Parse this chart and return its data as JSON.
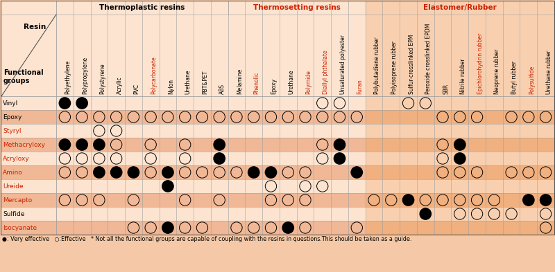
{
  "bg_color": "#f5c9a7",
  "light_row": "#fde8d8",
  "dark_row": "#f5c5a0",
  "elasto_light": "#f8d0b0",
  "elasto_dark": "#f0b890",
  "thermoplastic_resins": [
    "Polyethylene",
    "Polypropylene",
    "Polystyrene",
    "Acrylic",
    "PVC",
    "Polycarbonate",
    "Nylon",
    "Urethane",
    "PBT&PET",
    "ABS"
  ],
  "thermosetting_resins": [
    "Melamine",
    "Phenolic",
    "Epoxy",
    "Urethane",
    "Polymide",
    "Diallyl phthalate",
    "Unsaturated polyester",
    "Furan"
  ],
  "elastomer_resins": [
    "Polybutadiene rubber",
    "Polyisoprene rubber",
    "Sulfur-crosslinked EPM",
    "Peroxide crosslinked EPDM",
    "SBR",
    "Nitrile rubber",
    "Epichlorohydrin rubber",
    "Neoprene rubber",
    "Butyl rubber",
    "Polysulfide",
    "Urethane rubber"
  ],
  "functional_groups": [
    "Vinyl",
    "Epoxy",
    "Styryl",
    "Methacryloxy",
    "Acryloxy",
    "Amino",
    "Ureide",
    "Mercapto",
    "Sulfide",
    "Isocyanate"
  ],
  "red_col_names": [
    "Polycarbonate",
    "Phenolic",
    "Polymide",
    "Furan",
    "Epichlorohydrin rubber",
    "Polysulfide",
    "Diallyl phthalate"
  ],
  "red_row_names": [
    "Styryl",
    "Methacryloxy",
    "Acryloxy",
    "Amino",
    "Ureide",
    "Mercapto",
    "Isocyanate"
  ],
  "data": {
    "Vinyl": [
      "F",
      "F",
      "",
      "",
      "",
      "",
      "",
      "",
      "",
      "",
      "",
      "",
      "",
      "",
      "",
      "O",
      "O",
      "",
      "",
      "",
      "O",
      "O",
      "",
      "",
      "",
      "",
      "",
      "",
      ""
    ],
    "Epoxy": [
      "O",
      "O",
      "O",
      "O",
      "O",
      "O",
      "O",
      "O",
      "O",
      "O",
      "O",
      "O",
      "O",
      "O",
      "O",
      "O",
      "O",
      "O",
      "",
      "",
      "",
      "",
      "O",
      "O",
      "O",
      "",
      "O",
      "O",
      "O"
    ],
    "Styryl": [
      "",
      "",
      "O",
      "O",
      "",
      "",
      "",
      "",
      "",
      "",
      "",
      "",
      "",
      "",
      "",
      "",
      "",
      "",
      "",
      "",
      "",
      "",
      "",
      "",
      "",
      "",
      "",
      "",
      ""
    ],
    "Methacryloxy": [
      "F",
      "F",
      "F",
      "O",
      "",
      "O",
      "",
      "O",
      "",
      "F",
      "",
      "",
      "",
      "",
      "",
      "O",
      "F",
      "",
      "",
      "",
      "",
      "",
      "O",
      "F",
      "",
      "",
      "",
      "",
      ""
    ],
    "Acryloxy": [
      "O",
      "O",
      "O",
      "O",
      "",
      "O",
      "",
      "O",
      "",
      "F",
      "",
      "",
      "",
      "",
      "",
      "O",
      "F",
      "",
      "",
      "",
      "",
      "",
      "O",
      "F",
      "",
      "",
      "",
      "",
      ""
    ],
    "Amino": [
      "O",
      "O",
      "F",
      "F",
      "F",
      "O",
      "F",
      "O",
      "O",
      "O",
      "O",
      "F",
      "F",
      "O",
      "O",
      "",
      "",
      "F",
      "",
      "",
      "",
      "",
      "O",
      "O",
      "O",
      "",
      "O",
      "O",
      "O"
    ],
    "Ureide": [
      "",
      "",
      "",
      "",
      "",
      "",
      "F",
      "",
      "",
      "",
      "",
      "",
      "O",
      "",
      "O",
      "O",
      "",
      "",
      "",
      "",
      "",
      "",
      "",
      "",
      "",
      "",
      "",
      "",
      ""
    ],
    "Mercapto": [
      "O",
      "O",
      "O",
      "",
      "O",
      "",
      "",
      "O",
      "",
      "O",
      "",
      "",
      "O",
      "O",
      "O",
      "",
      "",
      "",
      "O",
      "O",
      "F",
      "O",
      "O",
      "O",
      "O",
      "O",
      "",
      "F",
      "F"
    ],
    "Sulfide": [
      "",
      "",
      "",
      "",
      "",
      "",
      "",
      "",
      "",
      "",
      "",
      "",
      "",
      "",
      "",
      "",
      "",
      "",
      "",
      "",
      "",
      "F",
      "",
      "O",
      "O",
      "O",
      "O",
      "",
      "O"
    ],
    "Isocyanate": [
      "",
      "",
      "",
      "",
      "O",
      "O",
      "F",
      "O",
      "O",
      "",
      "O",
      "O",
      "O",
      "F",
      "O",
      "",
      "",
      "O",
      "",
      "",
      "",
      "",
      "",
      "",
      "",
      "",
      "",
      "",
      "O"
    ]
  },
  "footnote": "●: Very effective   ○:Effective   * Not all the functional groups are capable of coupling with the resins in questions.This should be taken as a guide."
}
